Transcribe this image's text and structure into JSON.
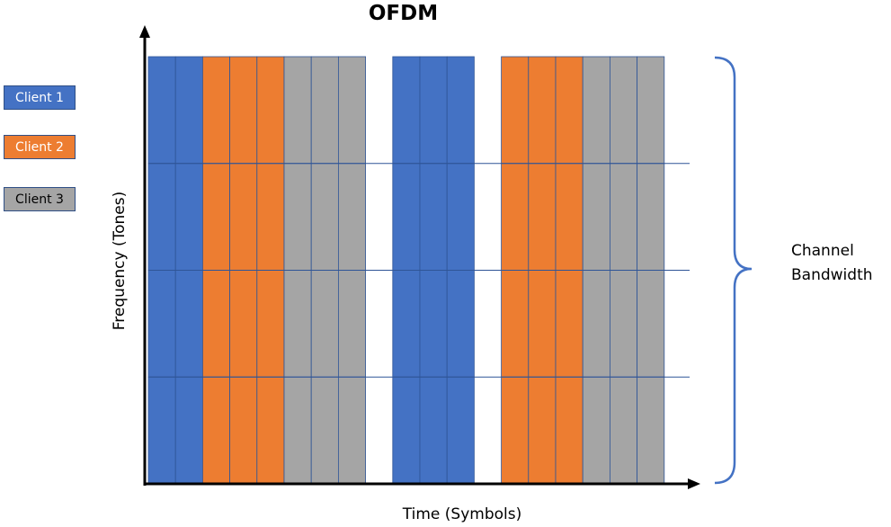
{
  "title": "OFDM",
  "legend": [
    {
      "label": "Client 1",
      "color": "#4472C4",
      "text_color": "#ffffff"
    },
    {
      "label": "Client 2",
      "color": "#ED7D31",
      "text_color": "#ffffff"
    },
    {
      "label": "Client 3",
      "color": "#A5A5A5",
      "text_color": "#000000"
    }
  ],
  "axes": {
    "x_label": "Time (Symbols)",
    "y_label": "Frequency (Tones)"
  },
  "bandwidth_label": [
    "Channel",
    "Bandwidth"
  ],
  "colors": {
    "client_1": "#4472C4",
    "client_2": "#ED7D31",
    "client_3": "#A5A5A5",
    "gridline": "#2F5597",
    "brace": "#4472C4",
    "axis": "#000000"
  },
  "grid": {
    "tone_rows": 4,
    "symbol_columns": [
      1,
      1,
      2,
      2,
      2,
      3,
      3,
      3,
      0,
      1,
      1,
      1,
      0,
      2,
      2,
      2,
      3,
      3,
      3
    ]
  }
}
